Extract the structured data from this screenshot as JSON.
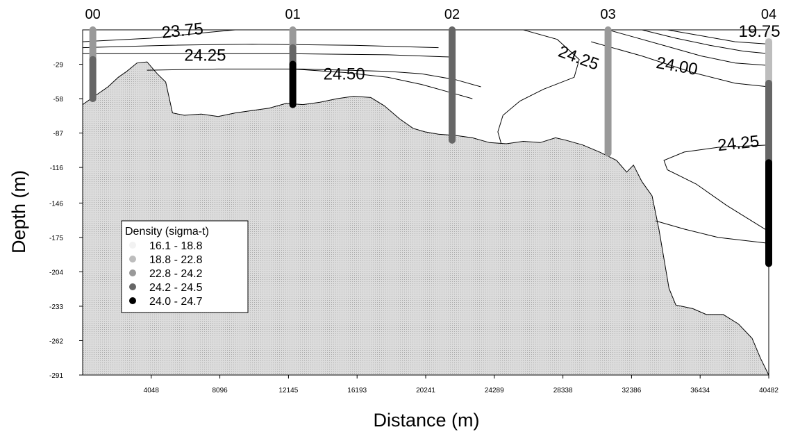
{
  "chart_data": {
    "type": "section-contour",
    "xlabel": "Distance (m)",
    "ylabel": "Depth (m)",
    "xlim": [
      0,
      40482
    ],
    "ylim": [
      -291,
      0
    ],
    "x_ticks": [
      4048,
      8096,
      12145,
      16193,
      20241,
      24289,
      28338,
      32386,
      36434,
      40482
    ],
    "y_ticks": [
      -29,
      -58,
      -87,
      -116,
      -146,
      -175,
      -204,
      -233,
      -262,
      -291
    ],
    "stations": [
      {
        "name": "00",
        "x": 600,
        "segments": [
          {
            "from": 0,
            "to": -25,
            "class": 2
          },
          {
            "from": -25,
            "to": -58,
            "class": 3
          }
        ]
      },
      {
        "name": "01",
        "x": 12400,
        "segments": [
          {
            "from": 0,
            "to": -15,
            "class": 2
          },
          {
            "from": -15,
            "to": -29,
            "class": 3
          },
          {
            "from": -29,
            "to": -63,
            "class": 4
          }
        ]
      },
      {
        "name": "02",
        "x": 21800,
        "segments": [
          {
            "from": 0,
            "to": -93,
            "class": 3
          }
        ]
      },
      {
        "name": "03",
        "x": 31000,
        "segments": [
          {
            "from": 0,
            "to": -104,
            "class": 2
          }
        ]
      },
      {
        "name": "04",
        "x": 40482,
        "segments": [
          {
            "from": -2,
            "to": -10,
            "class": 0
          },
          {
            "from": -10,
            "to": -45,
            "class": 1
          },
          {
            "from": -45,
            "to": -112,
            "class": 3
          },
          {
            "from": -112,
            "to": -197,
            "class": 4
          }
        ]
      }
    ],
    "legend": {
      "title": "Density (sigma-t)",
      "placement": "bottom-left",
      "entries": [
        {
          "label": "16.1 - 18.8",
          "color": "#f2f2f2"
        },
        {
          "label": "18.8 - 22.8",
          "color": "#bdbdbd"
        },
        {
          "label": "22.8 - 24.2",
          "color": "#999999"
        },
        {
          "label": "24.2 - 24.5",
          "color": "#666666"
        },
        {
          "label": "24.0 - 24.7",
          "color": "#000000"
        }
      ]
    },
    "bottom_profile": [
      [
        0,
        -63
      ],
      [
        800,
        -55
      ],
      [
        1500,
        -48
      ],
      [
        2100,
        -40
      ],
      [
        2600,
        -35
      ],
      [
        3200,
        -28
      ],
      [
        3800,
        -27
      ],
      [
        4400,
        -37
      ],
      [
        4900,
        -44
      ],
      [
        5300,
        -70
      ],
      [
        6000,
        -72
      ],
      [
        7000,
        -71
      ],
      [
        8000,
        -73
      ],
      [
        9000,
        -70
      ],
      [
        10000,
        -68
      ],
      [
        11000,
        -66
      ],
      [
        12000,
        -62
      ],
      [
        13000,
        -63
      ],
      [
        14000,
        -61
      ],
      [
        15000,
        -58
      ],
      [
        16000,
        -56
      ],
      [
        17000,
        -57
      ],
      [
        17800,
        -64
      ],
      [
        18700,
        -75
      ],
      [
        19500,
        -83
      ],
      [
        20200,
        -86
      ],
      [
        21000,
        -88
      ],
      [
        22000,
        -89
      ],
      [
        23000,
        -91
      ],
      [
        24000,
        -95
      ],
      [
        25000,
        -96
      ],
      [
        26000,
        -94
      ],
      [
        27000,
        -95
      ],
      [
        27900,
        -91
      ],
      [
        28500,
        -93
      ],
      [
        29500,
        -97
      ],
      [
        30500,
        -103
      ],
      [
        31500,
        -110
      ],
      [
        32100,
        -120
      ],
      [
        32500,
        -114
      ],
      [
        33000,
        -128
      ],
      [
        33600,
        -140
      ],
      [
        34000,
        -168
      ],
      [
        34600,
        -218
      ],
      [
        35000,
        -232
      ],
      [
        36000,
        -235
      ],
      [
        36800,
        -240
      ],
      [
        37800,
        -240
      ],
      [
        38700,
        -248
      ],
      [
        39500,
        -260
      ],
      [
        40000,
        -277
      ],
      [
        40482,
        -291
      ]
    ],
    "contours": [
      {
        "level": "23.75",
        "points": [
          [
            0,
            -10
          ],
          [
            4000,
            -7
          ],
          [
            7500,
            -2
          ],
          [
            9000,
            0
          ]
        ]
      },
      {
        "level": "",
        "points": [
          [
            0,
            -15
          ],
          [
            5000,
            -13
          ],
          [
            10000,
            -12
          ],
          [
            16000,
            -13
          ],
          [
            21000,
            -15
          ]
        ]
      },
      {
        "level": "",
        "points": [
          [
            0,
            -20
          ],
          [
            6000,
            -20
          ],
          [
            12000,
            -20
          ],
          [
            18000,
            -21
          ],
          [
            22000,
            -23
          ]
        ]
      },
      {
        "level": "24.25",
        "points": [
          [
            3800,
            -34
          ],
          [
            8000,
            -33
          ],
          [
            13000,
            -33
          ],
          [
            18000,
            -35
          ],
          [
            20000,
            -37
          ],
          [
            22000,
            -42
          ],
          [
            23500,
            -48
          ]
        ]
      },
      {
        "level": "24.50",
        "points": [
          [
            12400,
            -33
          ],
          [
            15500,
            -36
          ],
          [
            18000,
            -40
          ],
          [
            20000,
            -46
          ],
          [
            21500,
            -52
          ],
          [
            23000,
            -58
          ]
        ]
      },
      {
        "level": "24.25",
        "points": [
          [
            23500,
            -48
          ],
          [
            23500,
            -48
          ]
        ]
      },
      {
        "level": "",
        "points": [
          [
            31000,
            0
          ],
          [
            32500,
            -6
          ],
          [
            34500,
            -14
          ],
          [
            36500,
            -22
          ],
          [
            38500,
            -28
          ],
          [
            40482,
            -30
          ]
        ]
      },
      {
        "level": "",
        "points": [
          [
            33000,
            0
          ],
          [
            35000,
            -7
          ],
          [
            37000,
            -13
          ],
          [
            39000,
            -18
          ],
          [
            40482,
            -20
          ]
        ]
      },
      {
        "level": "",
        "points": [
          [
            34500,
            0
          ],
          [
            36500,
            -5
          ],
          [
            38500,
            -10
          ],
          [
            40482,
            -12
          ]
        ]
      },
      {
        "level": "24.00",
        "points": [
          [
            30000,
            -10
          ],
          [
            33000,
            -22
          ],
          [
            36000,
            -36
          ],
          [
            38500,
            -45
          ],
          [
            40482,
            -48
          ]
        ]
      },
      {
        "level": "24.25",
        "points": [
          [
            26000,
            0
          ],
          [
            28000,
            -8
          ],
          [
            29300,
            -25
          ],
          [
            29000,
            -40
          ],
          [
            27200,
            -50
          ],
          [
            25800,
            -60
          ],
          [
            24800,
            -72
          ],
          [
            24500,
            -86
          ],
          [
            24700,
            -96
          ]
        ]
      },
      {
        "level": "24.25",
        "points": [
          [
            40482,
            -97
          ],
          [
            37500,
            -99
          ],
          [
            35500,
            -103
          ],
          [
            34300,
            -110
          ],
          [
            34500,
            -118
          ],
          [
            36200,
            -130
          ],
          [
            38000,
            -148
          ],
          [
            40482,
            -170
          ]
        ]
      },
      {
        "level": "",
        "points": [
          [
            33800,
            -161
          ],
          [
            35500,
            -168
          ],
          [
            37500,
            -175
          ],
          [
            40482,
            -180
          ]
        ]
      }
    ],
    "contour_labels": [
      {
        "text": "23.75",
        "x": 4700,
        "y": -7,
        "rotate": -6
      },
      {
        "text": "24.25",
        "x": 6000,
        "y": -26,
        "rotate": 0
      },
      {
        "text": "24.50",
        "x": 14200,
        "y": -42,
        "rotate": 0
      },
      {
        "text": "24.25",
        "x": 28000,
        "y": -22,
        "rotate": 20
      },
      {
        "text": "24.00",
        "x": 33800,
        "y": -32,
        "rotate": 10
      },
      {
        "text": "19.75",
        "x": 38700,
        "y": -6,
        "rotate": 0
      },
      {
        "text": "24.25",
        "x": 37500,
        "y": -102,
        "rotate": -6
      }
    ]
  }
}
